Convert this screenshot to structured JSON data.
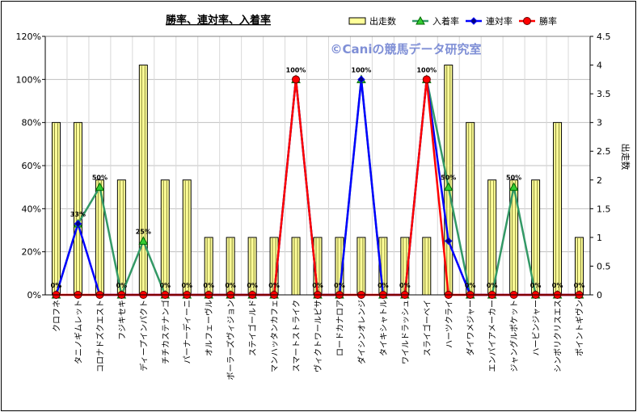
{
  "chart_data": {
    "type": "bar",
    "title": "勝率、連対率、入着率",
    "watermark": "©Caniの競馬データ研究室",
    "y2label": "出走数",
    "categories": [
      "クロフネ",
      "タニノギムレット",
      "コロナドズクエスト",
      "フジキセキ",
      "ディープインパクト",
      "チチカステナンゴ",
      "パーナーディーニ",
      "オルフェーヴル",
      "ボーラーズヴィジョン",
      "ステイゴールド",
      "マンハッタンカフェ",
      "スマートストライク",
      "ヴィクトワールピサ",
      "ロードカナロア",
      "ダイシンオレンジ",
      "タイキシャトル",
      "ワイルドラッシュ",
      "スライゴーベイ",
      "ハーツクライ",
      "ダイワメジャー",
      "エンパイアメーカー",
      "ジャングルポケット",
      "ハービンジャー",
      "シンボリクリスエス",
      "ポイントギヴン"
    ],
    "series": [
      {
        "name": "出走数",
        "axis": "right",
        "type": "bar",
        "color": "#ffff99",
        "values": [
          3,
          3,
          2,
          2,
          4,
          2,
          2,
          1,
          1,
          1,
          1,
          1,
          1,
          1,
          1,
          1,
          1,
          1,
          4,
          3,
          2,
          2,
          2,
          3,
          1
        ]
      },
      {
        "name": "入着率",
        "axis": "left",
        "type": "line",
        "color": "#339966",
        "values": [
          0,
          0.33,
          0.5,
          0,
          0.25,
          0,
          0,
          0,
          0,
          0,
          0,
          1,
          0,
          0,
          1,
          0,
          0,
          1,
          0.5,
          0,
          0,
          0.5,
          0,
          0,
          0
        ]
      },
      {
        "name": "連対率",
        "axis": "left",
        "type": "line",
        "color": "#0000ff",
        "values": [
          0,
          0.33,
          0,
          0,
          0,
          0,
          0,
          0,
          0,
          0,
          0,
          1,
          0,
          0,
          1,
          0,
          0,
          1,
          0.25,
          0,
          0,
          0,
          0,
          0,
          0
        ]
      },
      {
        "name": "勝率",
        "axis": "left",
        "type": "line",
        "color": "#ff0000",
        "values": [
          0,
          0,
          0,
          0,
          0,
          0,
          0,
          0,
          0,
          0,
          0,
          1,
          0,
          0,
          0,
          0,
          0,
          1,
          0,
          0,
          0,
          0,
          0,
          0,
          0
        ]
      }
    ],
    "data_labels": [
      "0%",
      "33%",
      "50%",
      "0%",
      "25%",
      "0%",
      "0%",
      "0%",
      "0%",
      "0%",
      "0%",
      "100%",
      "0%",
      "0%",
      "100%",
      "0%",
      "0%",
      "100%",
      "50%",
      "0%",
      "0%",
      "50%",
      "0%",
      "0%",
      "0%"
    ],
    "y_ticks": [
      "0%",
      "20%",
      "40%",
      "60%",
      "80%",
      "100%",
      "120%"
    ],
    "y2_ticks": [
      "0",
      "0.5",
      "1",
      "1.5",
      "2",
      "2.5",
      "3",
      "3.5",
      "4",
      "4.5"
    ],
    "ylim": [
      0,
      1.2
    ],
    "y2lim": [
      0,
      4.5
    ],
    "grid": true,
    "legend": "top-right"
  }
}
